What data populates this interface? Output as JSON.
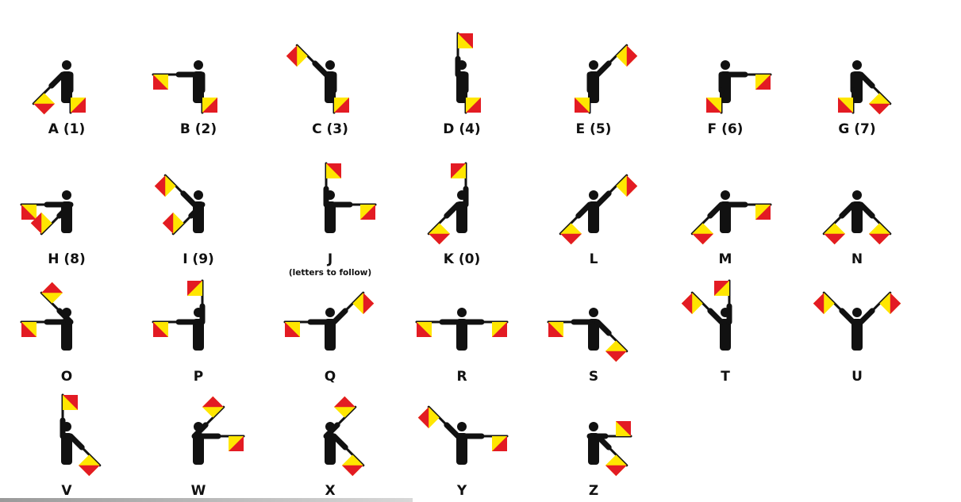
{
  "colors": {
    "figure": "#111111",
    "flag_red": "#e31b23",
    "flag_yellow": "#ffe600"
  },
  "signals": [
    {
      "letter": "A (1)",
      "note": "",
      "left": "down-left",
      "right": "down"
    },
    {
      "letter": "B (2)",
      "note": "",
      "left": "left",
      "right": "down"
    },
    {
      "letter": "C (3)",
      "note": "",
      "left": "up-left",
      "right": "down"
    },
    {
      "letter": "D (4)",
      "note": "",
      "left": "up",
      "right": "down"
    },
    {
      "letter": "E (5)",
      "note": "",
      "left": "down",
      "right": "up-right"
    },
    {
      "letter": "F (6)",
      "note": "",
      "left": "down",
      "right": "right"
    },
    {
      "letter": "G (7)",
      "note": "",
      "left": "down",
      "right": "down-right"
    },
    {
      "letter": "H (8)",
      "note": "",
      "left": "left",
      "right": "down-left"
    },
    {
      "letter": "I (9)",
      "note": "",
      "left": "up-left",
      "right": "down-left"
    },
    {
      "letter": "J",
      "note": "(letters to follow)",
      "left": "up",
      "right": "right"
    },
    {
      "letter": "K (0)",
      "note": "",
      "left": "down-left",
      "right": "up"
    },
    {
      "letter": "L",
      "note": "",
      "left": "down-left",
      "right": "up-right"
    },
    {
      "letter": "M",
      "note": "",
      "left": "down-left",
      "right": "right"
    },
    {
      "letter": "N",
      "note": "",
      "left": "down-left",
      "right": "down-right"
    },
    {
      "letter": "O",
      "note": "",
      "left": "left",
      "right": "up-left"
    },
    {
      "letter": "P",
      "note": "",
      "left": "left",
      "right": "up"
    },
    {
      "letter": "Q",
      "note": "",
      "left": "left",
      "right": "up-right"
    },
    {
      "letter": "R",
      "note": "",
      "left": "left",
      "right": "right"
    },
    {
      "letter": "S",
      "note": "",
      "left": "left",
      "right": "down-right"
    },
    {
      "letter": "T",
      "note": "",
      "left": "up-left",
      "right": "up"
    },
    {
      "letter": "U",
      "note": "",
      "left": "up-left",
      "right": "up-right"
    },
    {
      "letter": "V",
      "note": "",
      "left": "up",
      "right": "down-right"
    },
    {
      "letter": "W",
      "note": "",
      "left": "up-right",
      "right": "right"
    },
    {
      "letter": "X",
      "note": "",
      "left": "up-right",
      "right": "down-right"
    },
    {
      "letter": "Y",
      "note": "",
      "left": "up-left",
      "right": "right"
    },
    {
      "letter": "Z",
      "note": "",
      "left": "right",
      "right": "down-right"
    }
  ]
}
